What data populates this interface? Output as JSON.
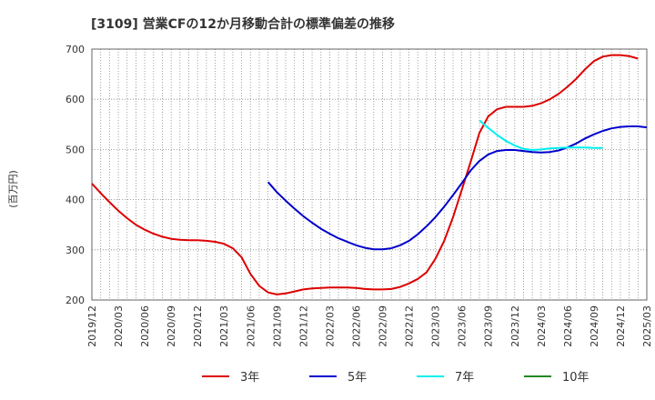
{
  "chart_data": {
    "type": "line",
    "title": "[3109]  営業CFの12か月移動合計の標準偏差の推移",
    "ylabel": "(百万円)",
    "xlabel": "",
    "ylim": [
      200,
      700
    ],
    "yticks": [
      200,
      300,
      400,
      500,
      600,
      700
    ],
    "x_start": "2019/12",
    "x_end": "2025/03",
    "x_tick_labels": [
      "2019/12",
      "2020/03",
      "2020/06",
      "2020/09",
      "2020/12",
      "2021/03",
      "2021/06",
      "2021/09",
      "2021/12",
      "2022/03",
      "2022/06",
      "2022/09",
      "2022/12",
      "2023/03",
      "2023/06",
      "2023/09",
      "2023/12",
      "2024/03",
      "2024/06",
      "2024/09",
      "2024/12",
      "2025/03"
    ],
    "grid": true,
    "legend_position": "bottom",
    "series": [
      {
        "name": "3年",
        "color": "#dd0000",
        "start": "2019/12",
        "values": [
          432,
          413,
          395,
          378,
          363,
          350,
          340,
          332,
          326,
          322,
          320,
          319,
          319,
          318,
          316,
          312,
          303,
          285,
          252,
          228,
          215,
          211,
          213,
          217,
          221,
          223,
          224,
          225,
          225,
          225,
          224,
          222,
          221,
          221,
          222,
          226,
          233,
          242,
          255,
          282,
          318,
          365,
          420,
          475,
          533,
          566,
          580,
          585,
          585,
          585,
          587,
          592,
          600,
          611,
          625,
          641,
          660,
          676,
          685,
          688,
          688,
          686,
          681
        ]
      },
      {
        "name": "5年",
        "color": "#0000cc",
        "start": "2021/08",
        "values": [
          435,
          415,
          398,
          382,
          367,
          354,
          342,
          332,
          323,
          316,
          309,
          304,
          301,
          301,
          303,
          309,
          318,
          331,
          347,
          365,
          386,
          409,
          433,
          458,
          477,
          490,
          497,
          499,
          499,
          497,
          495,
          494,
          495,
          498,
          504,
          512,
          522,
          530,
          537,
          542,
          545,
          546,
          546,
          544
        ]
      },
      {
        "name": "7年",
        "color": "#00eeee",
        "start": "2023/08",
        "values": [
          558,
          543,
          529,
          517,
          508,
          501,
          499,
          500,
          502,
          503,
          504,
          504,
          504,
          503,
          503
        ]
      },
      {
        "name": "10年",
        "color": "#228822",
        "start": "2024/09",
        "values": []
      }
    ]
  }
}
